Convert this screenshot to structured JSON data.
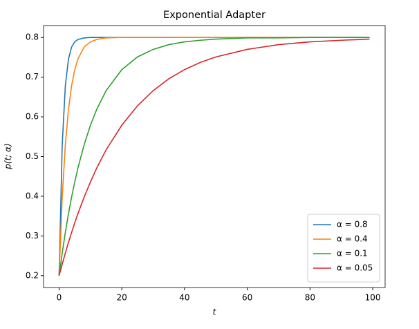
{
  "chart_data": {
    "type": "line",
    "title": "Exponential Adapter",
    "x_label": "t",
    "y_label": "p(t; α)",
    "x": [
      0,
      1,
      2,
      3,
      4,
      5,
      6,
      8,
      10,
      12,
      15,
      20,
      25,
      30,
      35,
      40,
      45,
      50,
      60,
      70,
      80,
      90,
      99
    ],
    "series": [
      {
        "name": "α = 0.8",
        "color": "#1f77b4",
        "values": [
          0.2,
          0.53,
          0.679,
          0.746,
          0.776,
          0.789,
          0.795,
          0.799,
          0.8,
          0.8,
          0.8,
          0.8,
          0.8,
          0.8,
          0.8,
          0.8,
          0.8,
          0.8,
          0.8,
          0.8,
          0.8,
          0.8,
          0.8
        ]
      },
      {
        "name": "α = 0.4",
        "color": "#ff7f0e",
        "values": [
          0.2,
          0.398,
          0.53,
          0.619,
          0.679,
          0.719,
          0.746,
          0.776,
          0.789,
          0.795,
          0.799,
          0.8,
          0.8,
          0.8,
          0.8,
          0.8,
          0.8,
          0.8,
          0.8,
          0.8,
          0.8,
          0.8,
          0.8
        ]
      },
      {
        "name": "α = 0.1",
        "color": "#2ca02c",
        "values": [
          0.2,
          0.257,
          0.309,
          0.356,
          0.398,
          0.436,
          0.471,
          0.53,
          0.579,
          0.619,
          0.666,
          0.719,
          0.751,
          0.77,
          0.782,
          0.789,
          0.793,
          0.796,
          0.799,
          0.799,
          0.8,
          0.8,
          0.8
        ]
      },
      {
        "name": "α = 0.05",
        "color": "#d62728",
        "values": [
          0.2,
          0.229,
          0.257,
          0.284,
          0.309,
          0.333,
          0.356,
          0.398,
          0.436,
          0.471,
          0.517,
          0.579,
          0.628,
          0.666,
          0.696,
          0.719,
          0.737,
          0.751,
          0.77,
          0.782,
          0.789,
          0.793,
          0.796
        ]
      }
    ],
    "xlim": [
      -4.95,
      103.95
    ],
    "ylim": [
      0.17,
      0.83
    ],
    "xticks": [
      0,
      20,
      40,
      60,
      80,
      100
    ],
    "yticks": [
      0.2,
      0.3,
      0.4,
      0.5,
      0.6,
      0.7,
      0.8
    ],
    "grid": false,
    "legend": "lower right"
  }
}
